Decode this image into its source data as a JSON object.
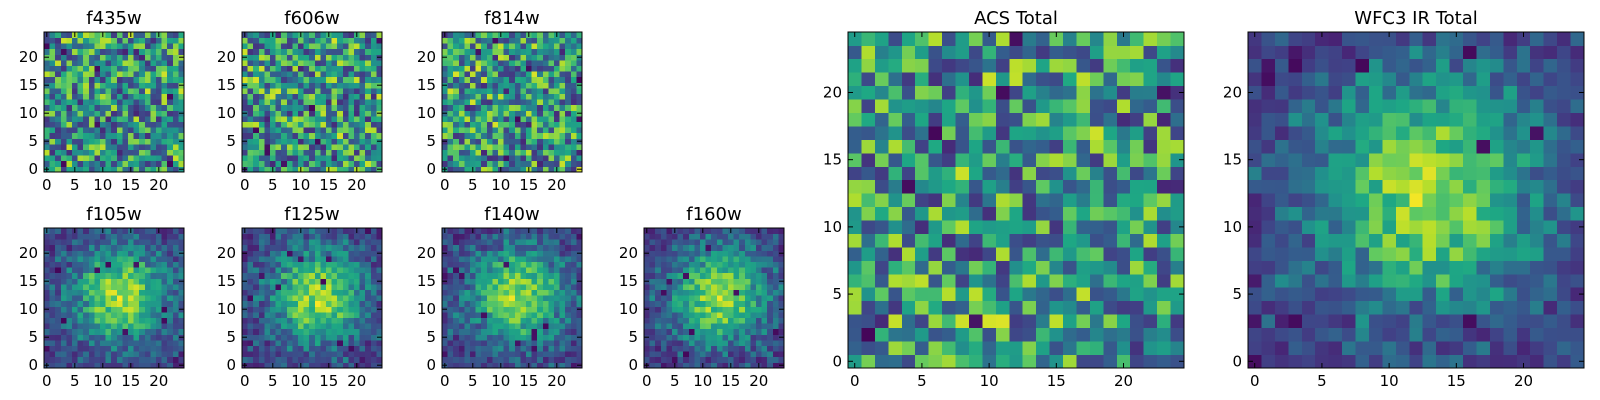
{
  "chart_data": [
    {
      "type": "heatmap",
      "title": "f435w",
      "size": "small",
      "grid_size": 25,
      "seed": 11,
      "pattern": "noise",
      "x_ticks": [
        "0",
        "5",
        "10",
        "15",
        "20"
      ],
      "y_ticks": [
        "0",
        "5",
        "10",
        "15",
        "20"
      ],
      "colormap": "viridis",
      "xlabel": "",
      "ylabel": ""
    },
    {
      "type": "heatmap",
      "title": "f606w",
      "size": "small",
      "grid_size": 25,
      "seed": 23,
      "pattern": "noise",
      "x_ticks": [
        "0",
        "5",
        "10",
        "15",
        "20"
      ],
      "y_ticks": [
        "0",
        "5",
        "10",
        "15",
        "20"
      ],
      "colormap": "viridis",
      "xlabel": "",
      "ylabel": ""
    },
    {
      "type": "heatmap",
      "title": "f814w",
      "size": "small",
      "grid_size": 25,
      "seed": 37,
      "pattern": "noise",
      "x_ticks": [
        "0",
        "5",
        "10",
        "15",
        "20"
      ],
      "y_ticks": [
        "0",
        "5",
        "10",
        "15",
        "20"
      ],
      "colormap": "viridis",
      "xlabel": "",
      "ylabel": ""
    },
    {
      "type": "heatmap",
      "title": "f105w",
      "size": "small",
      "grid_size": 25,
      "seed": 41,
      "pattern": "blob",
      "x_ticks": [
        "0",
        "5",
        "10",
        "15",
        "20"
      ],
      "y_ticks": [
        "0",
        "5",
        "10",
        "15",
        "20"
      ],
      "colormap": "viridis",
      "xlabel": "",
      "ylabel": ""
    },
    {
      "type": "heatmap",
      "title": "f125w",
      "size": "small",
      "grid_size": 25,
      "seed": 53,
      "pattern": "blob",
      "x_ticks": [
        "0",
        "5",
        "10",
        "15",
        "20"
      ],
      "y_ticks": [
        "0",
        "5",
        "10",
        "15",
        "20"
      ],
      "colormap": "viridis",
      "xlabel": "",
      "ylabel": ""
    },
    {
      "type": "heatmap",
      "title": "f140w",
      "size": "small",
      "grid_size": 25,
      "seed": 67,
      "pattern": "blob",
      "x_ticks": [
        "0",
        "5",
        "10",
        "15",
        "20"
      ],
      "y_ticks": [
        "0",
        "5",
        "10",
        "15",
        "20"
      ],
      "colormap": "viridis",
      "xlabel": "",
      "ylabel": ""
    },
    {
      "type": "heatmap",
      "title": "f160w",
      "size": "small",
      "grid_size": 25,
      "seed": 79,
      "pattern": "blob",
      "x_ticks": [
        "0",
        "5",
        "10",
        "15",
        "20"
      ],
      "y_ticks": [
        "0",
        "5",
        "10",
        "15",
        "20"
      ],
      "colormap": "viridis",
      "xlabel": "",
      "ylabel": ""
    },
    {
      "type": "heatmap",
      "title": "ACS Total",
      "size": "large",
      "grid_size": 25,
      "seed": 97,
      "pattern": "noise",
      "x_ticks": [
        "0",
        "5",
        "10",
        "15",
        "20"
      ],
      "y_ticks": [
        "0",
        "5",
        "10",
        "15",
        "20"
      ],
      "colormap": "viridis",
      "xlabel": "",
      "ylabel": ""
    },
    {
      "type": "heatmap",
      "title": "WFC3 IR Total",
      "size": "large",
      "grid_size": 25,
      "seed": 109,
      "pattern": "blob",
      "x_ticks": [
        "0",
        "5",
        "10",
        "15",
        "20"
      ],
      "y_ticks": [
        "0",
        "5",
        "10",
        "15",
        "20"
      ],
      "colormap": "viridis",
      "xlabel": "",
      "ylabel": ""
    }
  ]
}
